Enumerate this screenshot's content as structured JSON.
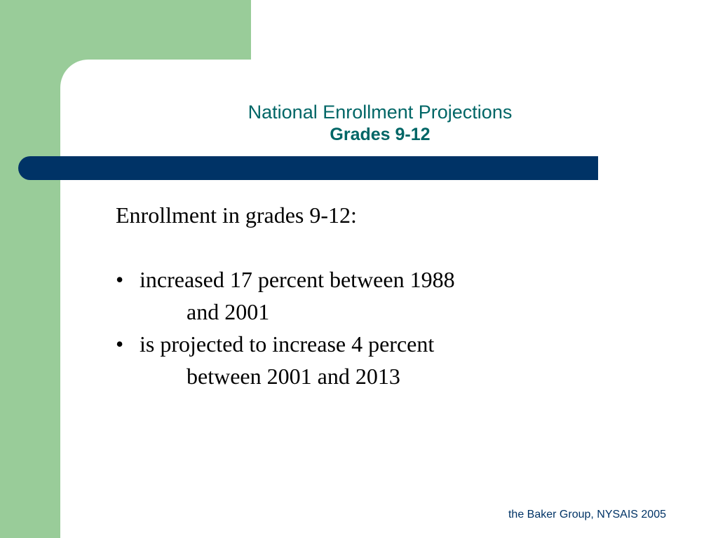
{
  "title": {
    "line1": "National Enrollment Projections",
    "line2": "Grades 9-12"
  },
  "body": {
    "intro": "Enrollment in grades 9-12:",
    "bullet_glyph": "•",
    "bullets": [
      {
        "line1": "increased 17 percent between 1988",
        "line2": "and 2001"
      },
      {
        "line1": "is projected to increase 4 percent",
        "line2": "between 2001 and 2013"
      }
    ]
  },
  "footer": "the Baker Group, NYSAIS 2005",
  "colors": {
    "green_panel": "#99cc99",
    "title_teal": "#006666",
    "bar_navy": "#003366"
  }
}
